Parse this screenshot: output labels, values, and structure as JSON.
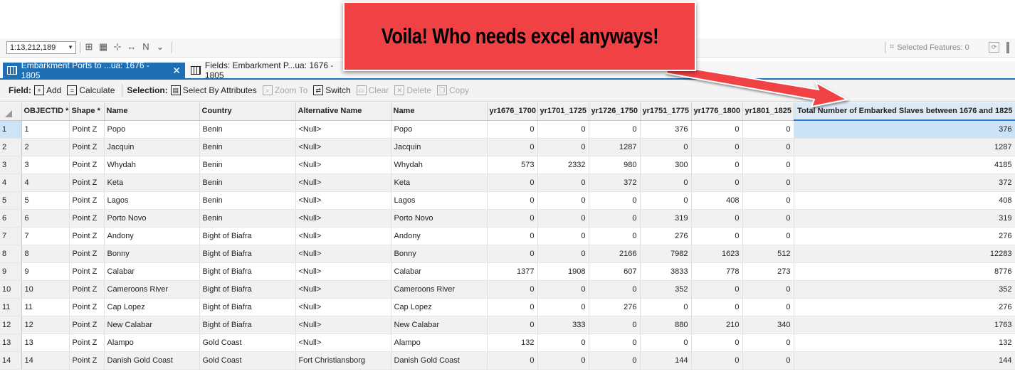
{
  "statusbar": {
    "scale": "1:13,212,189",
    "selected_features": "Selected Features: 0"
  },
  "tabs": [
    {
      "label": "Embarkment Ports to ...ua: 1676 - 1805",
      "active": true
    },
    {
      "label": "Fields: Embarkment P...ua: 1676 - 1805",
      "active": false
    }
  ],
  "toolbar": {
    "field_label": "Field:",
    "add": "Add",
    "calculate": "Calculate",
    "selection_label": "Selection:",
    "select_by_attributes": "Select By Attributes",
    "zoom_to": "Zoom To",
    "switch": "Switch",
    "clear": "Clear",
    "delete": "Delete",
    "copy": "Copy"
  },
  "callout": {
    "text": "Voila! Who needs excel anyways!"
  },
  "columns": [
    "OBJECTID *",
    "Shape *",
    "Name",
    "Country",
    "Alternative Name",
    "Name",
    "yr1676_1700",
    "yr1701_1725",
    "yr1726_1750",
    "yr1751_1775",
    "yr1776_1800",
    "yr1801_1825",
    "Total Number of Embarked Slaves between 1676 and 1825"
  ],
  "rows": [
    {
      "n": "1",
      "id": "1",
      "shape": "Point Z",
      "name": "Popo",
      "country": "Benin",
      "alt": "<Null>",
      "name2": "Popo",
      "v": [
        "0",
        "0",
        "0",
        "376",
        "0",
        "0"
      ],
      "total": "376"
    },
    {
      "n": "2",
      "id": "2",
      "shape": "Point Z",
      "name": "Jacquin",
      "country": "Benin",
      "alt": "<Null>",
      "name2": "Jacquin",
      "v": [
        "0",
        "0",
        "1287",
        "0",
        "0",
        "0"
      ],
      "total": "1287"
    },
    {
      "n": "3",
      "id": "3",
      "shape": "Point Z",
      "name": "Whydah",
      "country": "Benin",
      "alt": "<Null>",
      "name2": "Whydah",
      "v": [
        "573",
        "2332",
        "980",
        "300",
        "0",
        "0"
      ],
      "total": "4185"
    },
    {
      "n": "4",
      "id": "4",
      "shape": "Point Z",
      "name": "Keta",
      "country": "Benin",
      "alt": "<Null>",
      "name2": "Keta",
      "v": [
        "0",
        "0",
        "372",
        "0",
        "0",
        "0"
      ],
      "total": "372"
    },
    {
      "n": "5",
      "id": "5",
      "shape": "Point Z",
      "name": "Lagos",
      "country": "Benin",
      "alt": "<Null>",
      "name2": "Lagos",
      "v": [
        "0",
        "0",
        "0",
        "0",
        "408",
        "0"
      ],
      "total": "408"
    },
    {
      "n": "6",
      "id": "6",
      "shape": "Point Z",
      "name": "Porto Novo",
      "country": "Benin",
      "alt": "<Null>",
      "name2": "Porto Novo",
      "v": [
        "0",
        "0",
        "0",
        "319",
        "0",
        "0"
      ],
      "total": "319"
    },
    {
      "n": "7",
      "id": "7",
      "shape": "Point Z",
      "name": "Andony",
      "country": "Bight of Biafra",
      "alt": "<Null>",
      "name2": "Andony",
      "v": [
        "0",
        "0",
        "0",
        "276",
        "0",
        "0"
      ],
      "total": "276"
    },
    {
      "n": "8",
      "id": "8",
      "shape": "Point Z",
      "name": "Bonny",
      "country": "Bight of Biafra",
      "alt": "<Null>",
      "name2": "Bonny",
      "v": [
        "0",
        "0",
        "2166",
        "7982",
        "1623",
        "512"
      ],
      "total": "12283"
    },
    {
      "n": "9",
      "id": "9",
      "shape": "Point Z",
      "name": "Calabar",
      "country": "Bight of Biafra",
      "alt": "<Null>",
      "name2": "Calabar",
      "v": [
        "1377",
        "1908",
        "607",
        "3833",
        "778",
        "273"
      ],
      "total": "8776"
    },
    {
      "n": "10",
      "id": "10",
      "shape": "Point Z",
      "name": "Cameroons River",
      "country": "Bight of Biafra",
      "alt": "<Null>",
      "name2": "Cameroons River",
      "v": [
        "0",
        "0",
        "0",
        "352",
        "0",
        "0"
      ],
      "total": "352"
    },
    {
      "n": "11",
      "id": "11",
      "shape": "Point Z",
      "name": "Cap Lopez",
      "country": "Bight of Biafra",
      "alt": "<Null>",
      "name2": "Cap Lopez",
      "v": [
        "0",
        "0",
        "276",
        "0",
        "0",
        "0"
      ],
      "total": "276"
    },
    {
      "n": "12",
      "id": "12",
      "shape": "Point Z",
      "name": "New Calabar",
      "country": "Bight of Biafra",
      "alt": "<Null>",
      "name2": "New Calabar",
      "v": [
        "0",
        "333",
        "0",
        "880",
        "210",
        "340"
      ],
      "total": "1763"
    },
    {
      "n": "13",
      "id": "13",
      "shape": "Point Z",
      "name": "Alampo",
      "country": "Gold Coast",
      "alt": "<Null>",
      "name2": "Alampo",
      "v": [
        "132",
        "0",
        "0",
        "0",
        "0",
        "0"
      ],
      "total": "132"
    },
    {
      "n": "14",
      "id": "14",
      "shape": "Point Z",
      "name": "Danish Gold Coast",
      "country": "Gold Coast",
      "alt": "Fort Christiansborg",
      "name2": "Danish Gold Coast",
      "v": [
        "0",
        "0",
        "0",
        "144",
        "0",
        "0"
      ],
      "total": "144"
    }
  ]
}
